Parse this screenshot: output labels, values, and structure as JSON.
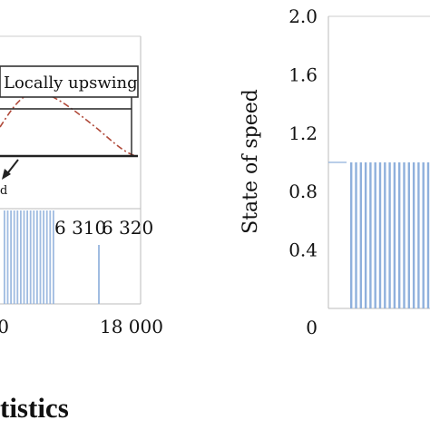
{
  "chart_data": [
    {
      "type": "bar",
      "panel": "left",
      "x_ticks": [
        "0",
        "18 000"
      ],
      "inset": {
        "x_ticks": [
          "6 310",
          "6 320"
        ],
        "annotation": "Locally upswing",
        "annotation_2": "d",
        "colors": {
          "curve": "#b04a3a",
          "bars": "#8fb0dc",
          "line": "#222222"
        }
      }
    },
    {
      "type": "bar",
      "panel": "right",
      "ylabel": "State of speed",
      "y_ticks": [
        "0",
        "0.4",
        "0.8",
        "1.2",
        "1.6",
        "2.0"
      ],
      "ylim": [
        0,
        2.0
      ],
      "bar_value": 1.0,
      "bar_count": 17,
      "colors": {
        "bars": "#8fb0dc"
      }
    }
  ],
  "caption": "tistics"
}
